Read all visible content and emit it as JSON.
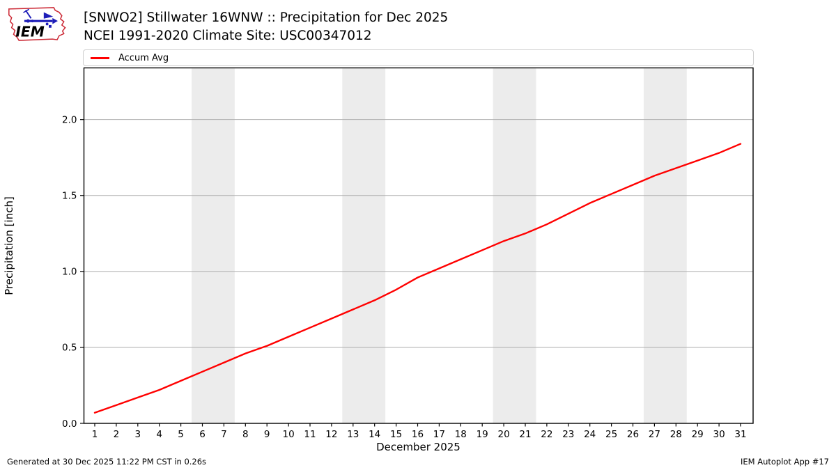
{
  "header": {
    "title_line1": "[SNWO2] Stillwater 16WNW :: Precipitation for Dec 2025",
    "title_line2": "NCEI 1991-2020 Climate Site: USC00347012",
    "logo_text": "IEM"
  },
  "legend": {
    "items": [
      {
        "label": "Accum Avg",
        "color": "#ff0000"
      }
    ]
  },
  "footer": {
    "left": "Generated at 30 Dec 2025 11:22 PM CST in 0.26s",
    "right": "IEM Autoplot App #17"
  },
  "chart_data": {
    "type": "line",
    "title": "[SNWO2] Stillwater 16WNW :: Precipitation for Dec 2025 — NCEI 1991-2020 Climate Site: USC00347012",
    "xlabel": "December 2025",
    "ylabel": "Precipitation [inch]",
    "x": [
      1,
      2,
      3,
      4,
      5,
      6,
      7,
      8,
      9,
      10,
      11,
      12,
      13,
      14,
      15,
      16,
      17,
      18,
      19,
      20,
      21,
      22,
      23,
      24,
      25,
      26,
      27,
      28,
      29,
      30,
      31
    ],
    "series": [
      {
        "name": "Accum Avg",
        "color": "#ff0000",
        "values": [
          0.07,
          0.12,
          0.17,
          0.22,
          0.28,
          0.34,
          0.4,
          0.46,
          0.51,
          0.57,
          0.63,
          0.69,
          0.75,
          0.81,
          0.88,
          0.96,
          1.02,
          1.08,
          1.14,
          1.2,
          1.25,
          1.31,
          1.38,
          1.45,
          1.51,
          1.57,
          1.63,
          1.68,
          1.73,
          1.78,
          1.84
        ]
      }
    ],
    "ylim": [
      0,
      2.34
    ],
    "yticks": [
      0.0,
      0.5,
      1.0,
      1.5,
      2.0
    ],
    "weekend_bands": [
      [
        5.5,
        7.5
      ],
      [
        12.5,
        14.5
      ],
      [
        19.5,
        21.5
      ],
      [
        26.5,
        28.5
      ]
    ],
    "band_color": "#ececec",
    "grid_color": "#adadad",
    "grid": "horizontal",
    "legend_position": "top"
  }
}
